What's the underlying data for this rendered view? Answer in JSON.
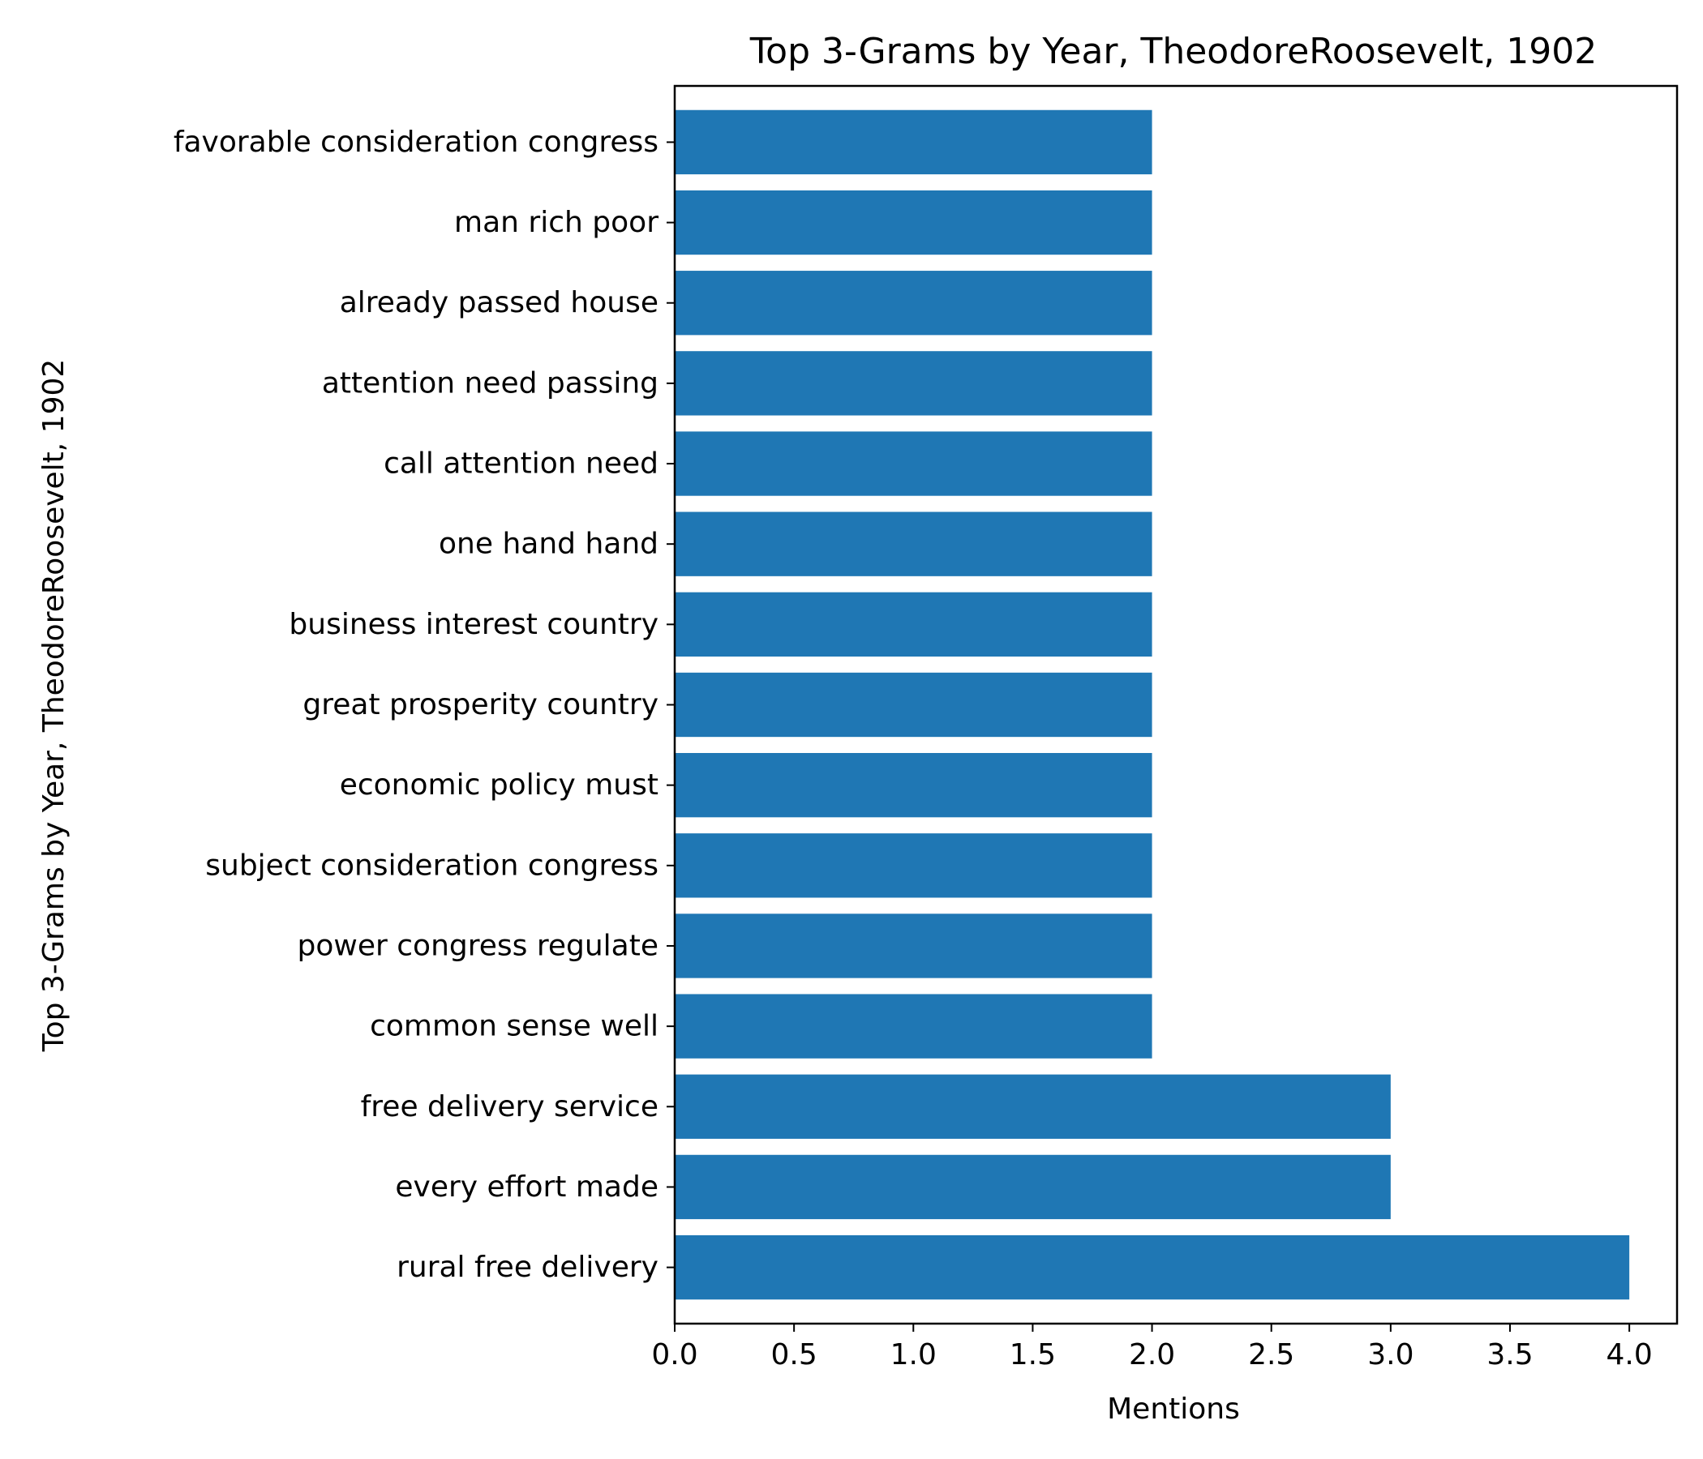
{
  "chart_data": {
    "type": "bar",
    "orientation": "horizontal",
    "title": "Top 3-Grams by Year, TheodoreRoosevelt, 1902",
    "xlabel": "Mentions",
    "ylabel": "Top 3-Grams by Year, TheodoreRoosevelt, 1902",
    "categories": [
      "rural free delivery",
      "every effort made",
      "free delivery service",
      "common sense well",
      "power congress regulate",
      "subject consideration congress",
      "economic policy must",
      "great prosperity country",
      "business interest country",
      "one hand hand",
      "call attention need",
      "attention need passing",
      "already passed house",
      "man rich poor",
      "favorable consideration congress"
    ],
    "values": [
      4,
      3,
      3,
      2,
      2,
      2,
      2,
      2,
      2,
      2,
      2,
      2,
      2,
      2,
      2
    ],
    "xlim": [
      0,
      4.2
    ],
    "xticks": [
      "0.0",
      "0.5",
      "1.0",
      "1.5",
      "2.0",
      "2.5",
      "3.0",
      "3.5",
      "4.0"
    ],
    "bar_color": "#1f77b4",
    "grid": false,
    "legend": "none"
  }
}
